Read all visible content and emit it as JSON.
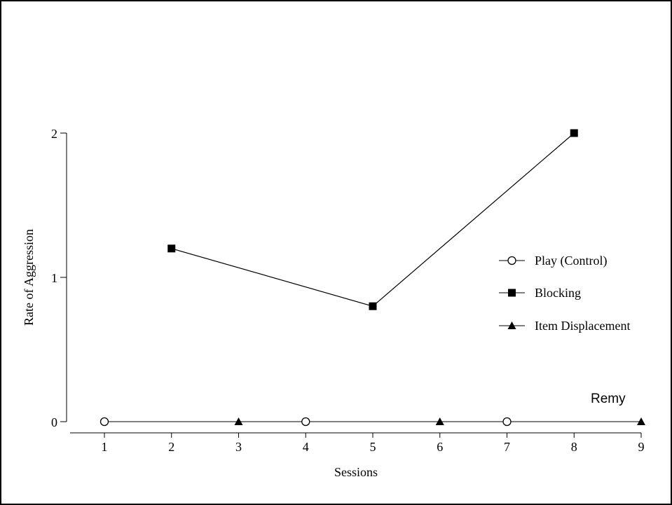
{
  "chart_data": {
    "type": "line",
    "title": "",
    "xlabel": "Sessions",
    "ylabel": "Rate of Aggression",
    "annotation": "Remy",
    "x_ticks": [
      1,
      2,
      3,
      4,
      5,
      6,
      7,
      8,
      9
    ],
    "y_ticks": [
      0,
      1,
      2
    ],
    "xlim": [
      0.5,
      9
    ],
    "ylim": [
      0,
      2
    ],
    "legend_position": "right",
    "series": [
      {
        "name": "Play (Control)",
        "marker": "circle-open",
        "x": [
          1,
          4,
          7
        ],
        "y": [
          0,
          0,
          0
        ]
      },
      {
        "name": "Blocking",
        "marker": "square-filled",
        "x": [
          2,
          5,
          8
        ],
        "y": [
          1.2,
          0.8,
          2
        ]
      },
      {
        "name": "Item Displacement",
        "marker": "triangle-filled",
        "x": [
          3,
          6,
          9
        ],
        "y": [
          0,
          0,
          0
        ]
      }
    ],
    "baseline_line": {
      "x": [
        1,
        9
      ],
      "y": [
        0,
        0
      ]
    }
  }
}
